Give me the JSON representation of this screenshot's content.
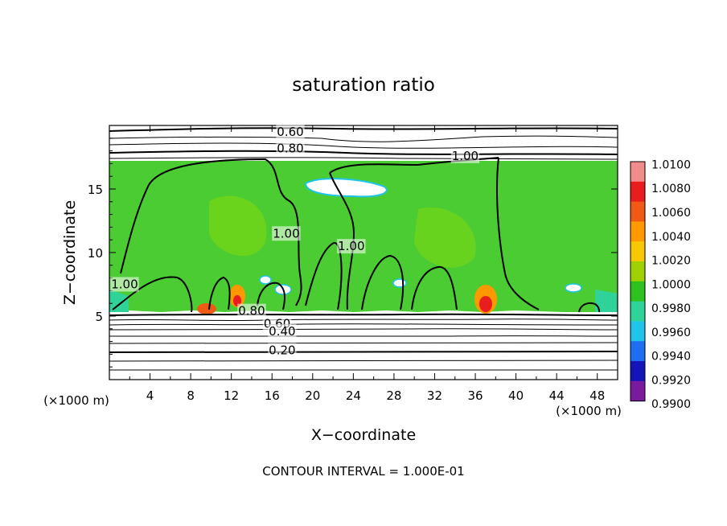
{
  "chart_data": {
    "type": "heatmap",
    "title": "saturation ratio",
    "xlabel": "X−coordinate",
    "ylabel": "Z−coordinate",
    "x_unit_left": "(×1000 m)",
    "x_unit_right": "(×1000 m)",
    "footer": "CONTOUR INTERVAL = 1.000E-01",
    "xlim": [
      0,
      50
    ],
    "ylim": [
      0,
      20
    ],
    "x_ticks": [
      4,
      8,
      12,
      16,
      20,
      24,
      28,
      32,
      36,
      40,
      44,
      48
    ],
    "x_tick_labels": [
      "4",
      "8",
      "12",
      "16",
      "20",
      "24",
      "28",
      "32",
      "36",
      "40",
      "44",
      "48"
    ],
    "y_ticks": [
      5,
      10,
      15
    ],
    "y_tick_labels": [
      "5",
      "10",
      "15"
    ],
    "grid": false,
    "contour_labels": [
      {
        "text": "0.60",
        "x": 17.8,
        "z": 19.5
      },
      {
        "text": "0.80",
        "x": 17.8,
        "z": 18.2
      },
      {
        "text": "1.00",
        "x": 35.0,
        "z": 17.6
      },
      {
        "text": "1.00",
        "x": 17.4,
        "z": 11.5
      },
      {
        "text": "1.00",
        "x": 23.8,
        "z": 10.5
      },
      {
        "text": "1.00",
        "x": 1.5,
        "z": 7.5
      },
      {
        "text": "0.60",
        "x": 16.5,
        "z": 4.4
      },
      {
        "text": "0.40",
        "x": 17.0,
        "z": 3.8
      },
      {
        "text": "0.20",
        "x": 17.0,
        "z": 2.3
      },
      {
        "text": "0.80",
        "x": 14.0,
        "z": 5.4
      }
    ],
    "colorbar": {
      "labels": [
        "1.0100",
        "1.0080",
        "1.0060",
        "1.0040",
        "1.0020",
        "1.0000",
        "0.9980",
        "0.9960",
        "0.9940",
        "0.9920",
        "0.9900"
      ],
      "colors": [
        "#f28b8b",
        "#e81e1e",
        "#f05a14",
        "#ff9900",
        "#f5c800",
        "#9fd100",
        "#2dc21e",
        "#2fd39a",
        "#1fc4e8",
        "#1e6ff0",
        "#1414b8",
        "#7a1a9c"
      ]
    }
  }
}
